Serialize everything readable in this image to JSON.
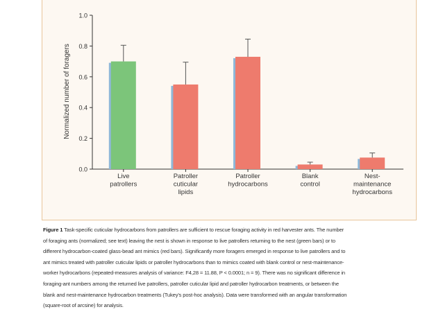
{
  "chart_data": {
    "type": "bar",
    "ylabel": "Normalized number of foragers",
    "xlabel": "",
    "ylim": [
      0,
      1.0
    ],
    "yticks": [
      "0.0",
      "0.2",
      "0.4",
      "0.6",
      "0.8",
      "1.0"
    ],
    "grid": false,
    "categories": [
      [
        "Live",
        "patrollers"
      ],
      [
        "Patroller",
        "cuticular",
        "lipids"
      ],
      [
        "Patroller",
        "hydrocarbons"
      ],
      [
        "Blank",
        "control"
      ],
      [
        "Nest-",
        "maintenance",
        "hydrocarbons"
      ]
    ],
    "values": [
      0.7,
      0.55,
      0.73,
      0.03,
      0.075
    ],
    "errors": [
      0.105,
      0.145,
      0.115,
      0.015,
      0.03
    ],
    "colors": [
      "#7cc57a",
      "#ee7b6d",
      "#ee7b6d",
      "#ee7b6d",
      "#ee7b6d"
    ],
    "shadow_color": "#8fb8d8"
  },
  "caption": {
    "label": "Figure 1",
    "lines": [
      " Task-specific cuticular hydrocarbons from patrollers are sufficient to rescue foraging activity in red harvester ants. The number",
      "of foraging ants (normalized; see text) leaving the nest is shown in response to live patrollers returning to the nest (green bars) or to",
      "different hydrocarbon-coated glass-bead ant mimics (red bars). Significantly more foragers emerged in response to live patrollers and to",
      "ant mimics treated with patroller cuticular lipids or patroller hydrocarbons than to mimics coated with blank control or nest-maintenance-",
      "worker hydrocarbons (repeated-measures analysis of variance: F4,28 = 11.88, P < 0.0001; n = 9). There was no significant difference in",
      "foraging-ant numbers among the returned live patrollers, patroller cuticular lipid and patroller hydrocarbon treatments, or between the",
      "blank and nest-maintenance hydrocarbon treatments (Tukey's post-hoc analysis). Data were transformed with an angular transformation",
      "(square-root of arcsine) for analysis."
    ]
  }
}
